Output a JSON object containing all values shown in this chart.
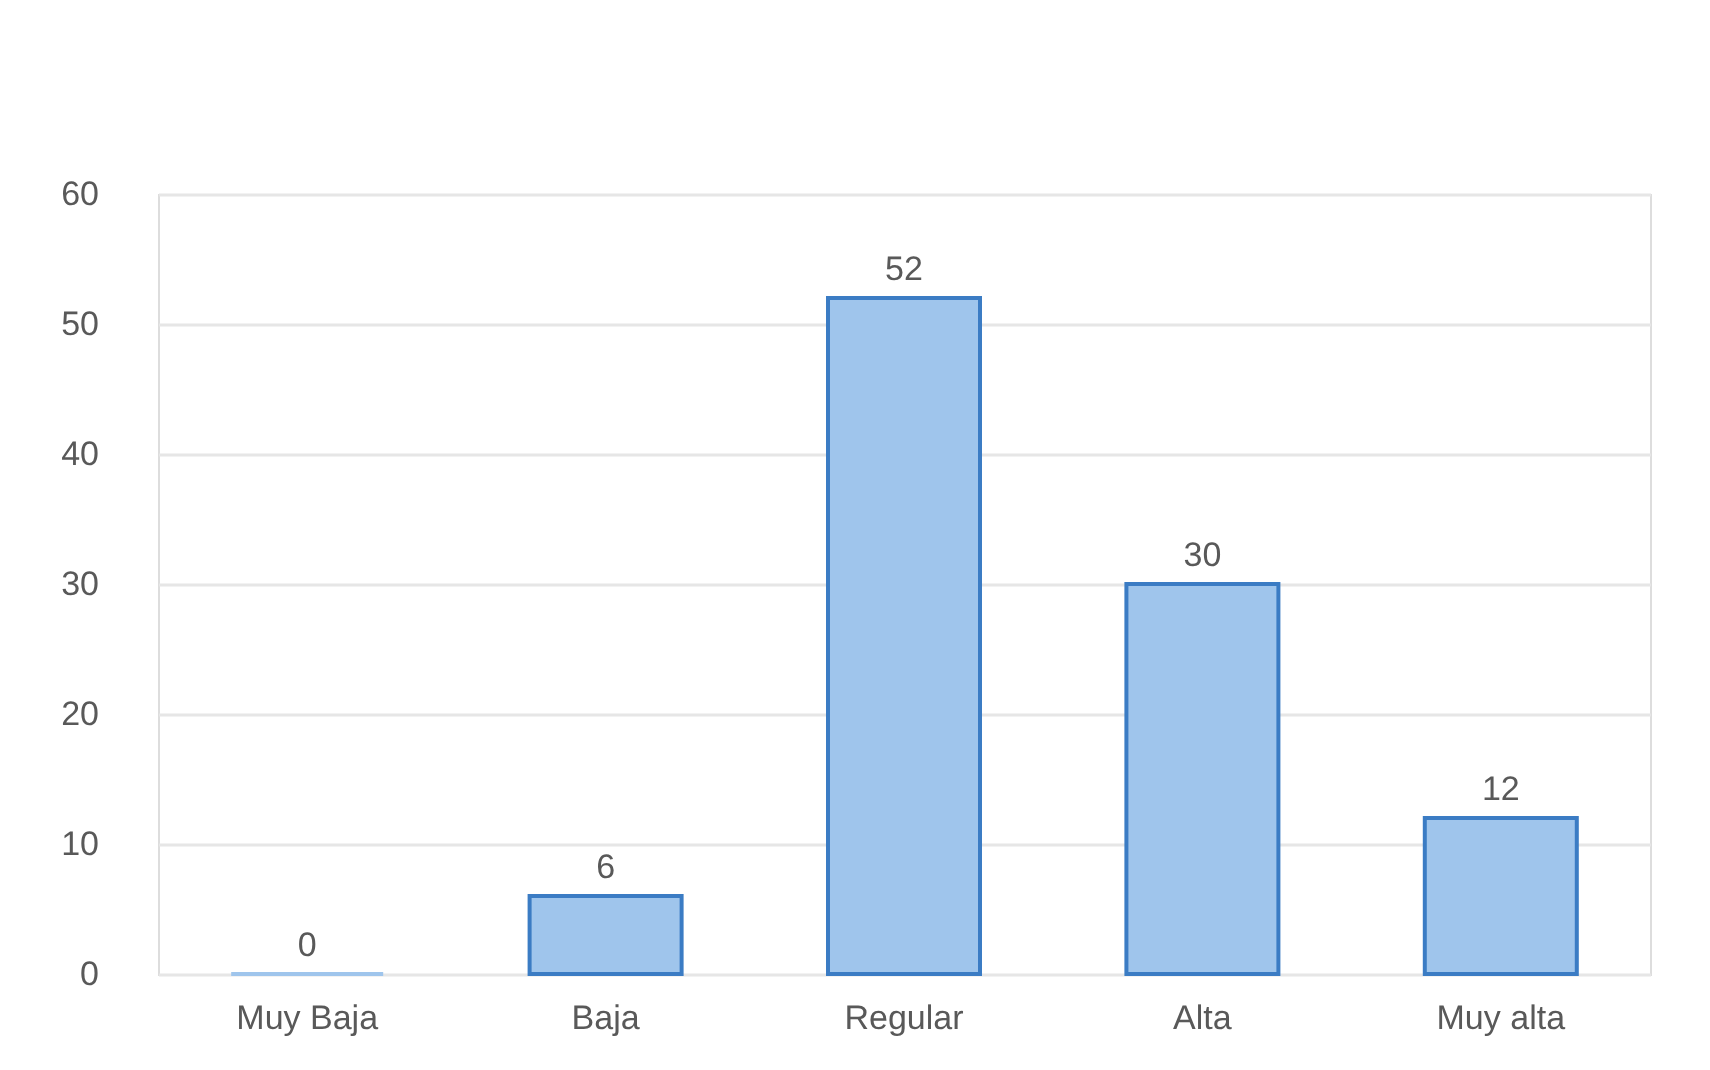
{
  "chart_data": {
    "type": "bar",
    "categories": [
      "Muy Baja",
      "Baja",
      "Regular",
      "Alta",
      "Muy alta"
    ],
    "values": [
      0,
      6,
      52,
      30,
      12
    ],
    "color": "#9fc5ec",
    "ylim": [
      0,
      60
    ],
    "yticks": [
      0,
      10,
      20,
      30,
      40,
      50,
      60
    ],
    "grid": "y",
    "data_labels": true
  }
}
